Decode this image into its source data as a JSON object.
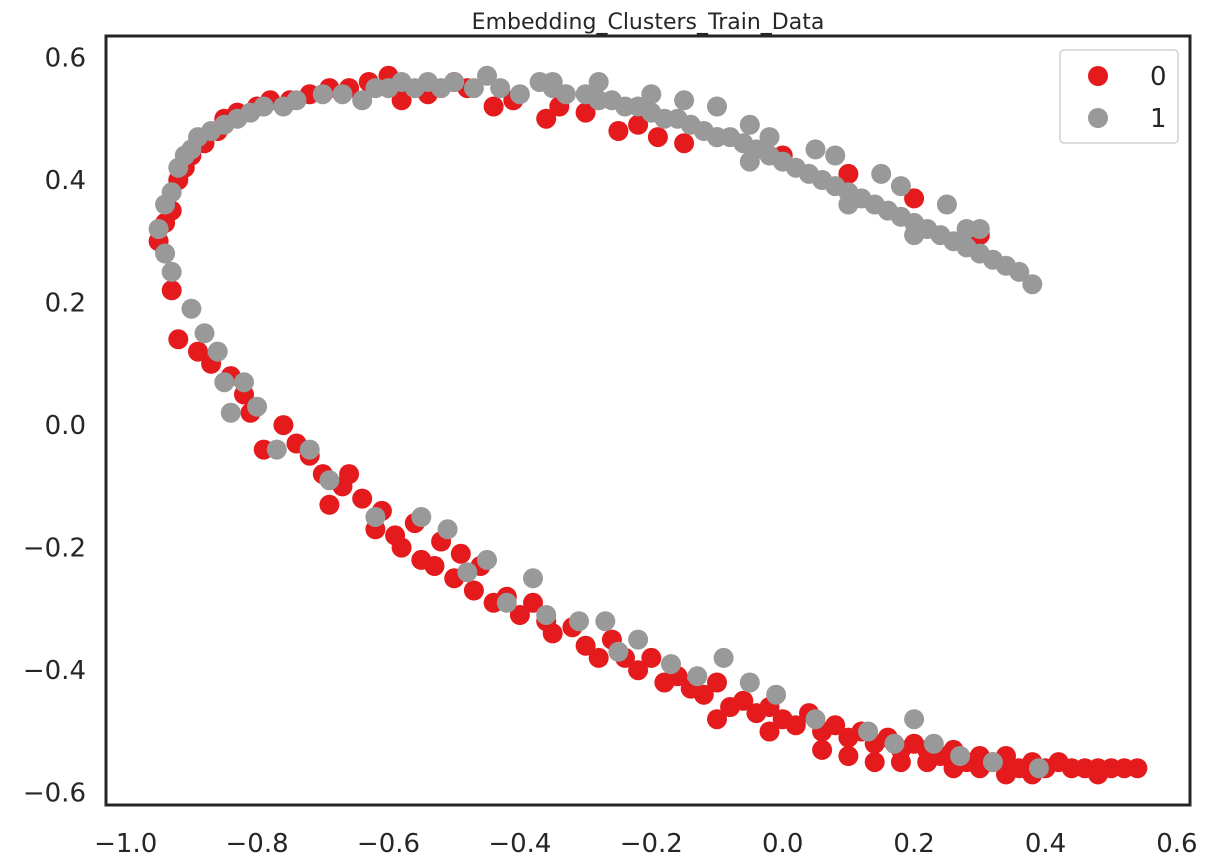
{
  "chart_data": {
    "type": "scatter",
    "title": "Embedding_Clusters_Train_Data",
    "xlabel": "",
    "ylabel": "",
    "xlim": [
      -1.03,
      0.62
    ],
    "ylim": [
      -0.62,
      0.635
    ],
    "x_ticks": [
      -1.0,
      -0.8,
      -0.6,
      -0.4,
      -0.2,
      0.0,
      0.2,
      0.4,
      0.6
    ],
    "x_tick_labels": [
      "−1.0",
      "−0.8",
      "−0.6",
      "−0.4",
      "−0.2",
      "0.0",
      "0.2",
      "0.4",
      "0.6"
    ],
    "y_ticks": [
      0.6,
      0.4,
      0.2,
      0.0,
      -0.2,
      -0.4,
      -0.6
    ],
    "y_tick_labels": [
      "0.6",
      "0.4",
      "0.2",
      "0.0",
      "−0.2",
      "−0.4",
      "−0.6"
    ],
    "grid": false,
    "legend_position": "top-right",
    "series": [
      {
        "name": "0",
        "color": "#e41a1c",
        "points": [
          [
            -0.95,
            0.3
          ],
          [
            -0.94,
            0.33
          ],
          [
            -0.93,
            0.35
          ],
          [
            -0.93,
            0.22
          ],
          [
            -0.92,
            0.4
          ],
          [
            -0.92,
            0.14
          ],
          [
            -0.91,
            0.42
          ],
          [
            -0.9,
            0.44
          ],
          [
            -0.89,
            0.12
          ],
          [
            -0.88,
            0.46
          ],
          [
            -0.87,
            0.1
          ],
          [
            -0.86,
            0.48
          ],
          [
            -0.85,
            0.5
          ],
          [
            -0.84,
            0.08
          ],
          [
            -0.83,
            0.51
          ],
          [
            -0.82,
            0.05
          ],
          [
            -0.81,
            0.02
          ],
          [
            -0.8,
            0.52
          ],
          [
            -0.79,
            -0.04
          ],
          [
            -0.78,
            0.53
          ],
          [
            -0.76,
            0.0
          ],
          [
            -0.75,
            0.53
          ],
          [
            -0.74,
            -0.03
          ],
          [
            -0.72,
            0.54
          ],
          [
            -0.72,
            -0.05
          ],
          [
            -0.7,
            -0.08
          ],
          [
            -0.69,
            0.55
          ],
          [
            -0.69,
            -0.13
          ],
          [
            -0.67,
            -0.1
          ],
          [
            -0.66,
            0.55
          ],
          [
            -0.66,
            -0.08
          ],
          [
            -0.64,
            -0.12
          ],
          [
            -0.63,
            0.56
          ],
          [
            -0.62,
            -0.17
          ],
          [
            -0.61,
            -0.14
          ],
          [
            -0.6,
            0.57
          ],
          [
            -0.59,
            -0.18
          ],
          [
            -0.58,
            -0.2
          ],
          [
            -0.56,
            -0.16
          ],
          [
            -0.55,
            -0.22
          ],
          [
            -0.54,
            0.54
          ],
          [
            -0.53,
            -0.23
          ],
          [
            -0.52,
            -0.19
          ],
          [
            -0.5,
            -0.25
          ],
          [
            -0.49,
            -0.21
          ],
          [
            -0.48,
            0.55
          ],
          [
            -0.47,
            -0.27
          ],
          [
            -0.46,
            -0.23
          ],
          [
            -0.44,
            -0.29
          ],
          [
            -0.42,
            -0.28
          ],
          [
            -0.41,
            0.53
          ],
          [
            -0.4,
            -0.31
          ],
          [
            -0.38,
            -0.29
          ],
          [
            -0.36,
            -0.32
          ],
          [
            -0.35,
            -0.34
          ],
          [
            -0.34,
            0.52
          ],
          [
            -0.32,
            -0.33
          ],
          [
            -0.3,
            -0.36
          ],
          [
            -0.28,
            -0.38
          ],
          [
            -0.26,
            -0.35
          ],
          [
            -0.25,
            0.48
          ],
          [
            -0.24,
            -0.38
          ],
          [
            -0.22,
            -0.4
          ],
          [
            -0.2,
            -0.38
          ],
          [
            -0.19,
            0.47
          ],
          [
            -0.18,
            -0.42
          ],
          [
            -0.16,
            -0.41
          ],
          [
            -0.14,
            -0.43
          ],
          [
            -0.12,
            -0.44
          ],
          [
            -0.1,
            -0.42
          ],
          [
            -0.08,
            -0.46
          ],
          [
            -0.06,
            -0.45
          ],
          [
            -0.04,
            -0.47
          ],
          [
            -0.02,
            -0.46
          ],
          [
            0.0,
            -0.48
          ],
          [
            0.02,
            -0.49
          ],
          [
            0.04,
            -0.47
          ],
          [
            0.06,
            -0.5
          ],
          [
            0.08,
            -0.49
          ],
          [
            0.1,
            -0.51
          ],
          [
            0.12,
            -0.5
          ],
          [
            0.14,
            -0.52
          ],
          [
            0.16,
            -0.51
          ],
          [
            0.18,
            -0.53
          ],
          [
            0.2,
            -0.52
          ],
          [
            0.22,
            -0.53
          ],
          [
            0.24,
            -0.54
          ],
          [
            0.26,
            -0.53
          ],
          [
            0.28,
            -0.55
          ],
          [
            0.3,
            -0.54
          ],
          [
            0.32,
            -0.55
          ],
          [
            0.34,
            -0.54
          ],
          [
            0.36,
            -0.56
          ],
          [
            0.38,
            -0.55
          ],
          [
            0.4,
            -0.56
          ],
          [
            0.42,
            -0.55
          ],
          [
            0.44,
            -0.56
          ],
          [
            0.46,
            -0.56
          ],
          [
            0.48,
            -0.56
          ],
          [
            0.5,
            -0.56
          ],
          [
            0.52,
            -0.56
          ],
          [
            0.54,
            -0.56
          ],
          [
            0.06,
            -0.53
          ],
          [
            0.14,
            -0.55
          ],
          [
            0.22,
            -0.55
          ],
          [
            0.3,
            -0.56
          ],
          [
            0.38,
            -0.57
          ],
          [
            0.48,
            -0.57
          ],
          [
            -0.1,
            -0.48
          ],
          [
            -0.02,
            -0.5
          ],
          [
            0.1,
            -0.54
          ],
          [
            0.18,
            -0.55
          ],
          [
            0.26,
            -0.56
          ],
          [
            0.34,
            -0.57
          ],
          [
            -0.3,
            0.51
          ],
          [
            -0.1,
            0.47
          ],
          [
            0.0,
            0.44
          ],
          [
            0.1,
            0.41
          ],
          [
            0.2,
            0.37
          ],
          [
            0.3,
            0.31
          ],
          [
            -0.58,
            0.53
          ],
          [
            -0.5,
            0.56
          ],
          [
            -0.44,
            0.52
          ],
          [
            -0.36,
            0.5
          ],
          [
            -0.22,
            0.49
          ],
          [
            -0.15,
            0.46
          ]
        ]
      },
      {
        "name": "1",
        "color": "#999999",
        "points": [
          [
            -0.95,
            0.32
          ],
          [
            -0.94,
            0.28
          ],
          [
            -0.94,
            0.36
          ],
          [
            -0.93,
            0.25
          ],
          [
            -0.93,
            0.38
          ],
          [
            -0.92,
            0.42
          ],
          [
            -0.91,
            0.44
          ],
          [
            -0.9,
            0.45
          ],
          [
            -0.9,
            0.19
          ],
          [
            -0.89,
            0.47
          ],
          [
            -0.88,
            0.15
          ],
          [
            -0.87,
            0.48
          ],
          [
            -0.86,
            0.12
          ],
          [
            -0.85,
            0.49
          ],
          [
            -0.85,
            0.07
          ],
          [
            -0.84,
            0.02
          ],
          [
            -0.83,
            0.5
          ],
          [
            -0.82,
            0.07
          ],
          [
            -0.81,
            0.51
          ],
          [
            -0.8,
            0.03
          ],
          [
            -0.79,
            0.52
          ],
          [
            -0.77,
            -0.04
          ],
          [
            -0.76,
            0.52
          ],
          [
            -0.74,
            0.53
          ],
          [
            -0.72,
            -0.04
          ],
          [
            -0.7,
            0.54
          ],
          [
            -0.69,
            -0.09
          ],
          [
            -0.67,
            0.54
          ],
          [
            -0.64,
            0.53
          ],
          [
            -0.62,
            -0.15
          ],
          [
            -0.62,
            0.55
          ],
          [
            -0.6,
            0.55
          ],
          [
            -0.58,
            0.56
          ],
          [
            -0.56,
            0.55
          ],
          [
            -0.55,
            -0.15
          ],
          [
            -0.54,
            0.56
          ],
          [
            -0.52,
            0.55
          ],
          [
            -0.51,
            -0.17
          ],
          [
            -0.5,
            0.56
          ],
          [
            -0.48,
            -0.24
          ],
          [
            -0.47,
            0.55
          ],
          [
            -0.45,
            0.57
          ],
          [
            -0.45,
            -0.22
          ],
          [
            -0.43,
            0.55
          ],
          [
            -0.42,
            -0.29
          ],
          [
            -0.4,
            0.54
          ],
          [
            -0.38,
            -0.25
          ],
          [
            -0.37,
            0.56
          ],
          [
            -0.36,
            -0.31
          ],
          [
            -0.35,
            0.55
          ],
          [
            -0.33,
            0.54
          ],
          [
            -0.31,
            -0.32
          ],
          [
            -0.3,
            0.54
          ],
          [
            -0.28,
            0.53
          ],
          [
            -0.27,
            -0.32
          ],
          [
            -0.26,
            0.53
          ],
          [
            -0.25,
            -0.37
          ],
          [
            -0.24,
            0.52
          ],
          [
            -0.22,
            0.52
          ],
          [
            -0.22,
            -0.35
          ],
          [
            -0.2,
            0.51
          ],
          [
            -0.18,
            0.5
          ],
          [
            -0.17,
            -0.39
          ],
          [
            -0.16,
            0.5
          ],
          [
            -0.14,
            0.49
          ],
          [
            -0.13,
            -0.41
          ],
          [
            -0.12,
            0.48
          ],
          [
            -0.1,
            0.47
          ],
          [
            -0.09,
            -0.38
          ],
          [
            -0.08,
            0.47
          ],
          [
            -0.06,
            0.46
          ],
          [
            -0.05,
            -0.42
          ],
          [
            -0.04,
            0.45
          ],
          [
            -0.02,
            0.44
          ],
          [
            -0.01,
            -0.44
          ],
          [
            0.0,
            0.43
          ],
          [
            0.02,
            0.42
          ],
          [
            0.04,
            0.41
          ],
          [
            0.05,
            -0.48
          ],
          [
            0.06,
            0.4
          ],
          [
            0.08,
            0.39
          ],
          [
            0.1,
            0.38
          ],
          [
            0.12,
            0.37
          ],
          [
            0.13,
            -0.5
          ],
          [
            0.14,
            0.36
          ],
          [
            0.16,
            0.35
          ],
          [
            0.17,
            -0.52
          ],
          [
            0.18,
            0.34
          ],
          [
            0.2,
            0.33
          ],
          [
            0.2,
            -0.48
          ],
          [
            0.22,
            0.32
          ],
          [
            0.23,
            -0.52
          ],
          [
            0.24,
            0.31
          ],
          [
            0.26,
            0.3
          ],
          [
            0.27,
            -0.54
          ],
          [
            0.28,
            0.29
          ],
          [
            0.3,
            0.28
          ],
          [
            0.32,
            0.27
          ],
          [
            0.32,
            -0.55
          ],
          [
            0.34,
            0.26
          ],
          [
            0.36,
            0.25
          ],
          [
            0.38,
            0.23
          ],
          [
            0.39,
            -0.56
          ],
          [
            -0.1,
            0.52
          ],
          [
            -0.05,
            0.49
          ],
          [
            0.05,
            0.45
          ],
          [
            0.15,
            0.41
          ],
          [
            0.25,
            0.36
          ],
          [
            -0.35,
            0.56
          ],
          [
            -0.28,
            0.56
          ],
          [
            -0.2,
            0.54
          ],
          [
            -0.15,
            0.53
          ],
          [
            -0.05,
            0.43
          ],
          [
            0.1,
            0.36
          ],
          [
            0.2,
            0.31
          ],
          [
            0.28,
            0.32
          ],
          [
            -0.02,
            0.47
          ],
          [
            0.08,
            0.44
          ],
          [
            0.18,
            0.39
          ],
          [
            0.3,
            0.32
          ]
        ]
      }
    ]
  }
}
